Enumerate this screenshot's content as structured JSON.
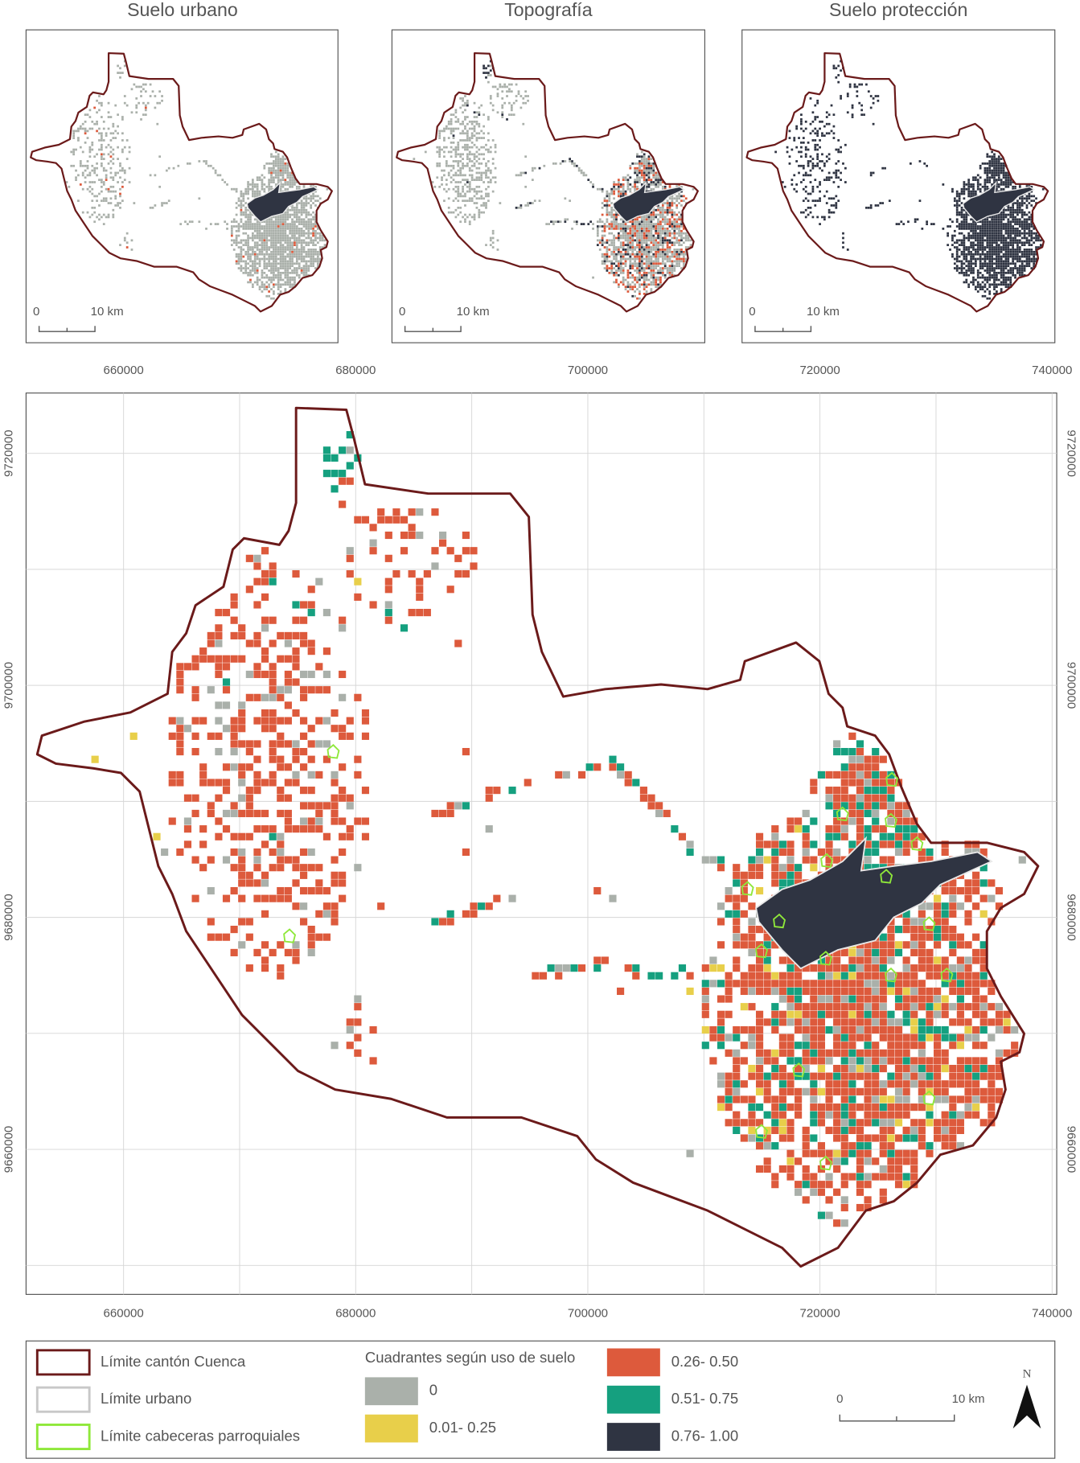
{
  "insets": [
    {
      "title": "Suelo urbano",
      "scale": {
        "start": "0",
        "end": "10 km"
      }
    },
    {
      "title": "Topografía",
      "scale": {
        "start": "0",
        "end": "10 km"
      }
    },
    {
      "title": "Suelo protección",
      "scale": {
        "start": "0",
        "end": "10 km"
      }
    }
  ],
  "map": {
    "xlim": [
      651600,
      740400
    ],
    "ylim": [
      9647500,
      9725200
    ],
    "xticks": [
      660000,
      680000,
      700000,
      720000,
      740000
    ],
    "yticks": [
      9720000,
      9700000,
      9680000,
      9660000
    ],
    "xgrid": [
      660000,
      670000,
      680000,
      690000,
      700000,
      710000,
      720000,
      730000,
      740000
    ],
    "ygrid": [
      9650000,
      9660000,
      9670000,
      9680000,
      9690000,
      9700000,
      9710000,
      9720000
    ]
  },
  "legend": {
    "boundaries": [
      {
        "label": "Límite cantón Cuenca",
        "color": "#6b1a1a"
      },
      {
        "label": "Límite urbano",
        "color": "#c8c8c8"
      },
      {
        "label": "Límite cabeceras parroquiales",
        "color": "#8fe83a"
      }
    ],
    "quadrants_title": "Cuadrantes según uso de suelo",
    "classes": [
      {
        "label": "0",
        "color": "#aab0aa"
      },
      {
        "label": "0.01- 0.25",
        "color": "#e8cf4a"
      },
      {
        "label": "0.26- 0.50",
        "color": "#dd5a3c"
      },
      {
        "label": "0.51- 0.75",
        "color": "#15a07f"
      },
      {
        "label": "0.76- 1.00",
        "color": "#2f3442"
      }
    ]
  },
  "scale": {
    "start": "0",
    "end": "10 km"
  },
  "north": "N"
}
